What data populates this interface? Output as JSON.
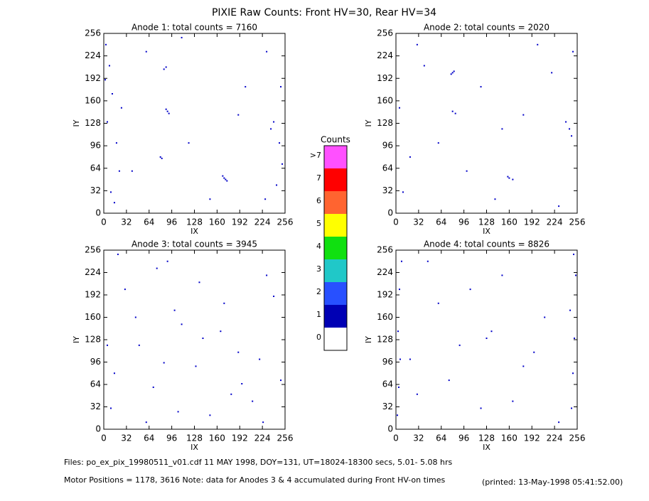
{
  "title": "PIXIE Raw Counts:  Front HV=30, Rear HV=34",
  "notes": [
    "Files: po_ex_pix_19980511_v01.cdf    11 MAY 1998, DOY=131, UT=18024-18300 secs,   5.01- 5.08 hrs",
    "Motor Positions = 1178, 3616   Note: data for Anodes 3 & 4 accumulated during Front HV-on times",
    "(printed: 13-May-1998 05:41:52.00)"
  ],
  "chart_data": [
    {
      "type": "scatter",
      "title": "Anode 1: total counts = 7160",
      "x_label": "IX",
      "y_label": "IY",
      "color": "#0000c8",
      "xlim": [
        0,
        256
      ],
      "ylim": [
        0,
        256
      ],
      "xticks": [
        0,
        32,
        64,
        96,
        128,
        160,
        192,
        224,
        256
      ],
      "yticks": [
        0,
        32,
        64,
        96,
        128,
        160,
        192,
        224,
        256
      ],
      "x": [
        3,
        8,
        12,
        5,
        18,
        22,
        10,
        15,
        2,
        25,
        230,
        240,
        248,
        252,
        236,
        244,
        250,
        228,
        170,
        172,
        168,
        174,
        90,
        92,
        88,
        80,
        82,
        85,
        88,
        60,
        120,
        200,
        150,
        40,
        110,
        190
      ],
      "y": [
        240,
        210,
        170,
        130,
        100,
        60,
        30,
        15,
        190,
        150,
        230,
        130,
        100,
        70,
        120,
        40,
        180,
        20,
        50,
        48,
        53,
        46,
        145,
        142,
        148,
        80,
        78,
        205,
        208,
        230,
        100,
        180,
        20,
        60,
        250,
        140
      ]
    },
    {
      "type": "scatter",
      "title": "Anode 2: total counts = 2020",
      "x_label": "IX",
      "y_label": "IY",
      "color": "#0000c8",
      "xlim": [
        0,
        256
      ],
      "ylim": [
        0,
        256
      ],
      "xticks": [
        0,
        32,
        64,
        96,
        128,
        160,
        192,
        224,
        256
      ],
      "yticks": [
        0,
        32,
        64,
        96,
        128,
        160,
        192,
        224,
        256
      ],
      "x": [
        80,
        82,
        78,
        80,
        84,
        160,
        165,
        158,
        245,
        248,
        240,
        250,
        10,
        20,
        5,
        30,
        120,
        200,
        60,
        180,
        140,
        100,
        220,
        40,
        230,
        150
      ],
      "y": [
        200,
        202,
        198,
        145,
        142,
        50,
        48,
        52,
        120,
        110,
        130,
        230,
        30,
        80,
        150,
        240,
        180,
        240,
        100,
        140,
        20,
        60,
        200,
        210,
        10,
        120
      ]
    },
    {
      "type": "scatter",
      "title": "Anode 3: total counts = 3945",
      "x_label": "IX",
      "y_label": "IY",
      "color": "#0000c8",
      "xlim": [
        0,
        256
      ],
      "ylim": [
        0,
        256
      ],
      "xticks": [
        0,
        32,
        64,
        96,
        128,
        160,
        192,
        224,
        256
      ],
      "yticks": [
        0,
        32,
        64,
        96,
        128,
        160,
        192,
        224,
        256
      ],
      "x": [
        10,
        30,
        50,
        70,
        90,
        110,
        130,
        150,
        170,
        190,
        210,
        230,
        250,
        20,
        60,
        100,
        140,
        180,
        220,
        240,
        15,
        45,
        75,
        105,
        135,
        165,
        195,
        225,
        5,
        85
      ],
      "y": [
        30,
        200,
        120,
        60,
        240,
        150,
        90,
        20,
        180,
        110,
        40,
        220,
        70,
        250,
        10,
        170,
        130,
        50,
        100,
        190,
        80,
        160,
        230,
        25,
        210,
        140,
        65,
        10,
        120,
        95
      ]
    },
    {
      "type": "scatter",
      "title": "Anode 4: total counts = 8826",
      "x_label": "IX",
      "y_label": "IY",
      "color": "#0000c8",
      "xlim": [
        0,
        256
      ],
      "ylim": [
        0,
        256
      ],
      "xticks": [
        0,
        32,
        64,
        96,
        128,
        160,
        192,
        224,
        256
      ],
      "yticks": [
        0,
        32,
        64,
        96,
        128,
        160,
        192,
        224,
        256
      ],
      "x": [
        2,
        4,
        6,
        3,
        5,
        8,
        248,
        250,
        252,
        246,
        254,
        251,
        30,
        60,
        90,
        120,
        150,
        180,
        210,
        230,
        45,
        75,
        105,
        135,
        165,
        195,
        128,
        20
      ],
      "y": [
        20,
        60,
        100,
        140,
        200,
        240,
        30,
        80,
        130,
        170,
        220,
        250,
        50,
        180,
        120,
        30,
        220,
        90,
        160,
        10,
        240,
        70,
        200,
        140,
        40,
        110,
        130,
        100
      ]
    },
    {
      "type": "colorbar",
      "title": "Counts",
      "labels": [
        "0",
        "1",
        "2",
        "3",
        "4",
        "5",
        "6",
        "7",
        ">7"
      ],
      "colors": [
        "#ffffff",
        "#0000b4",
        "#2850ff",
        "#20c8c8",
        "#10e010",
        "#ffff00",
        "#ff6430",
        "#ff0000",
        "#ff50ff"
      ]
    }
  ]
}
